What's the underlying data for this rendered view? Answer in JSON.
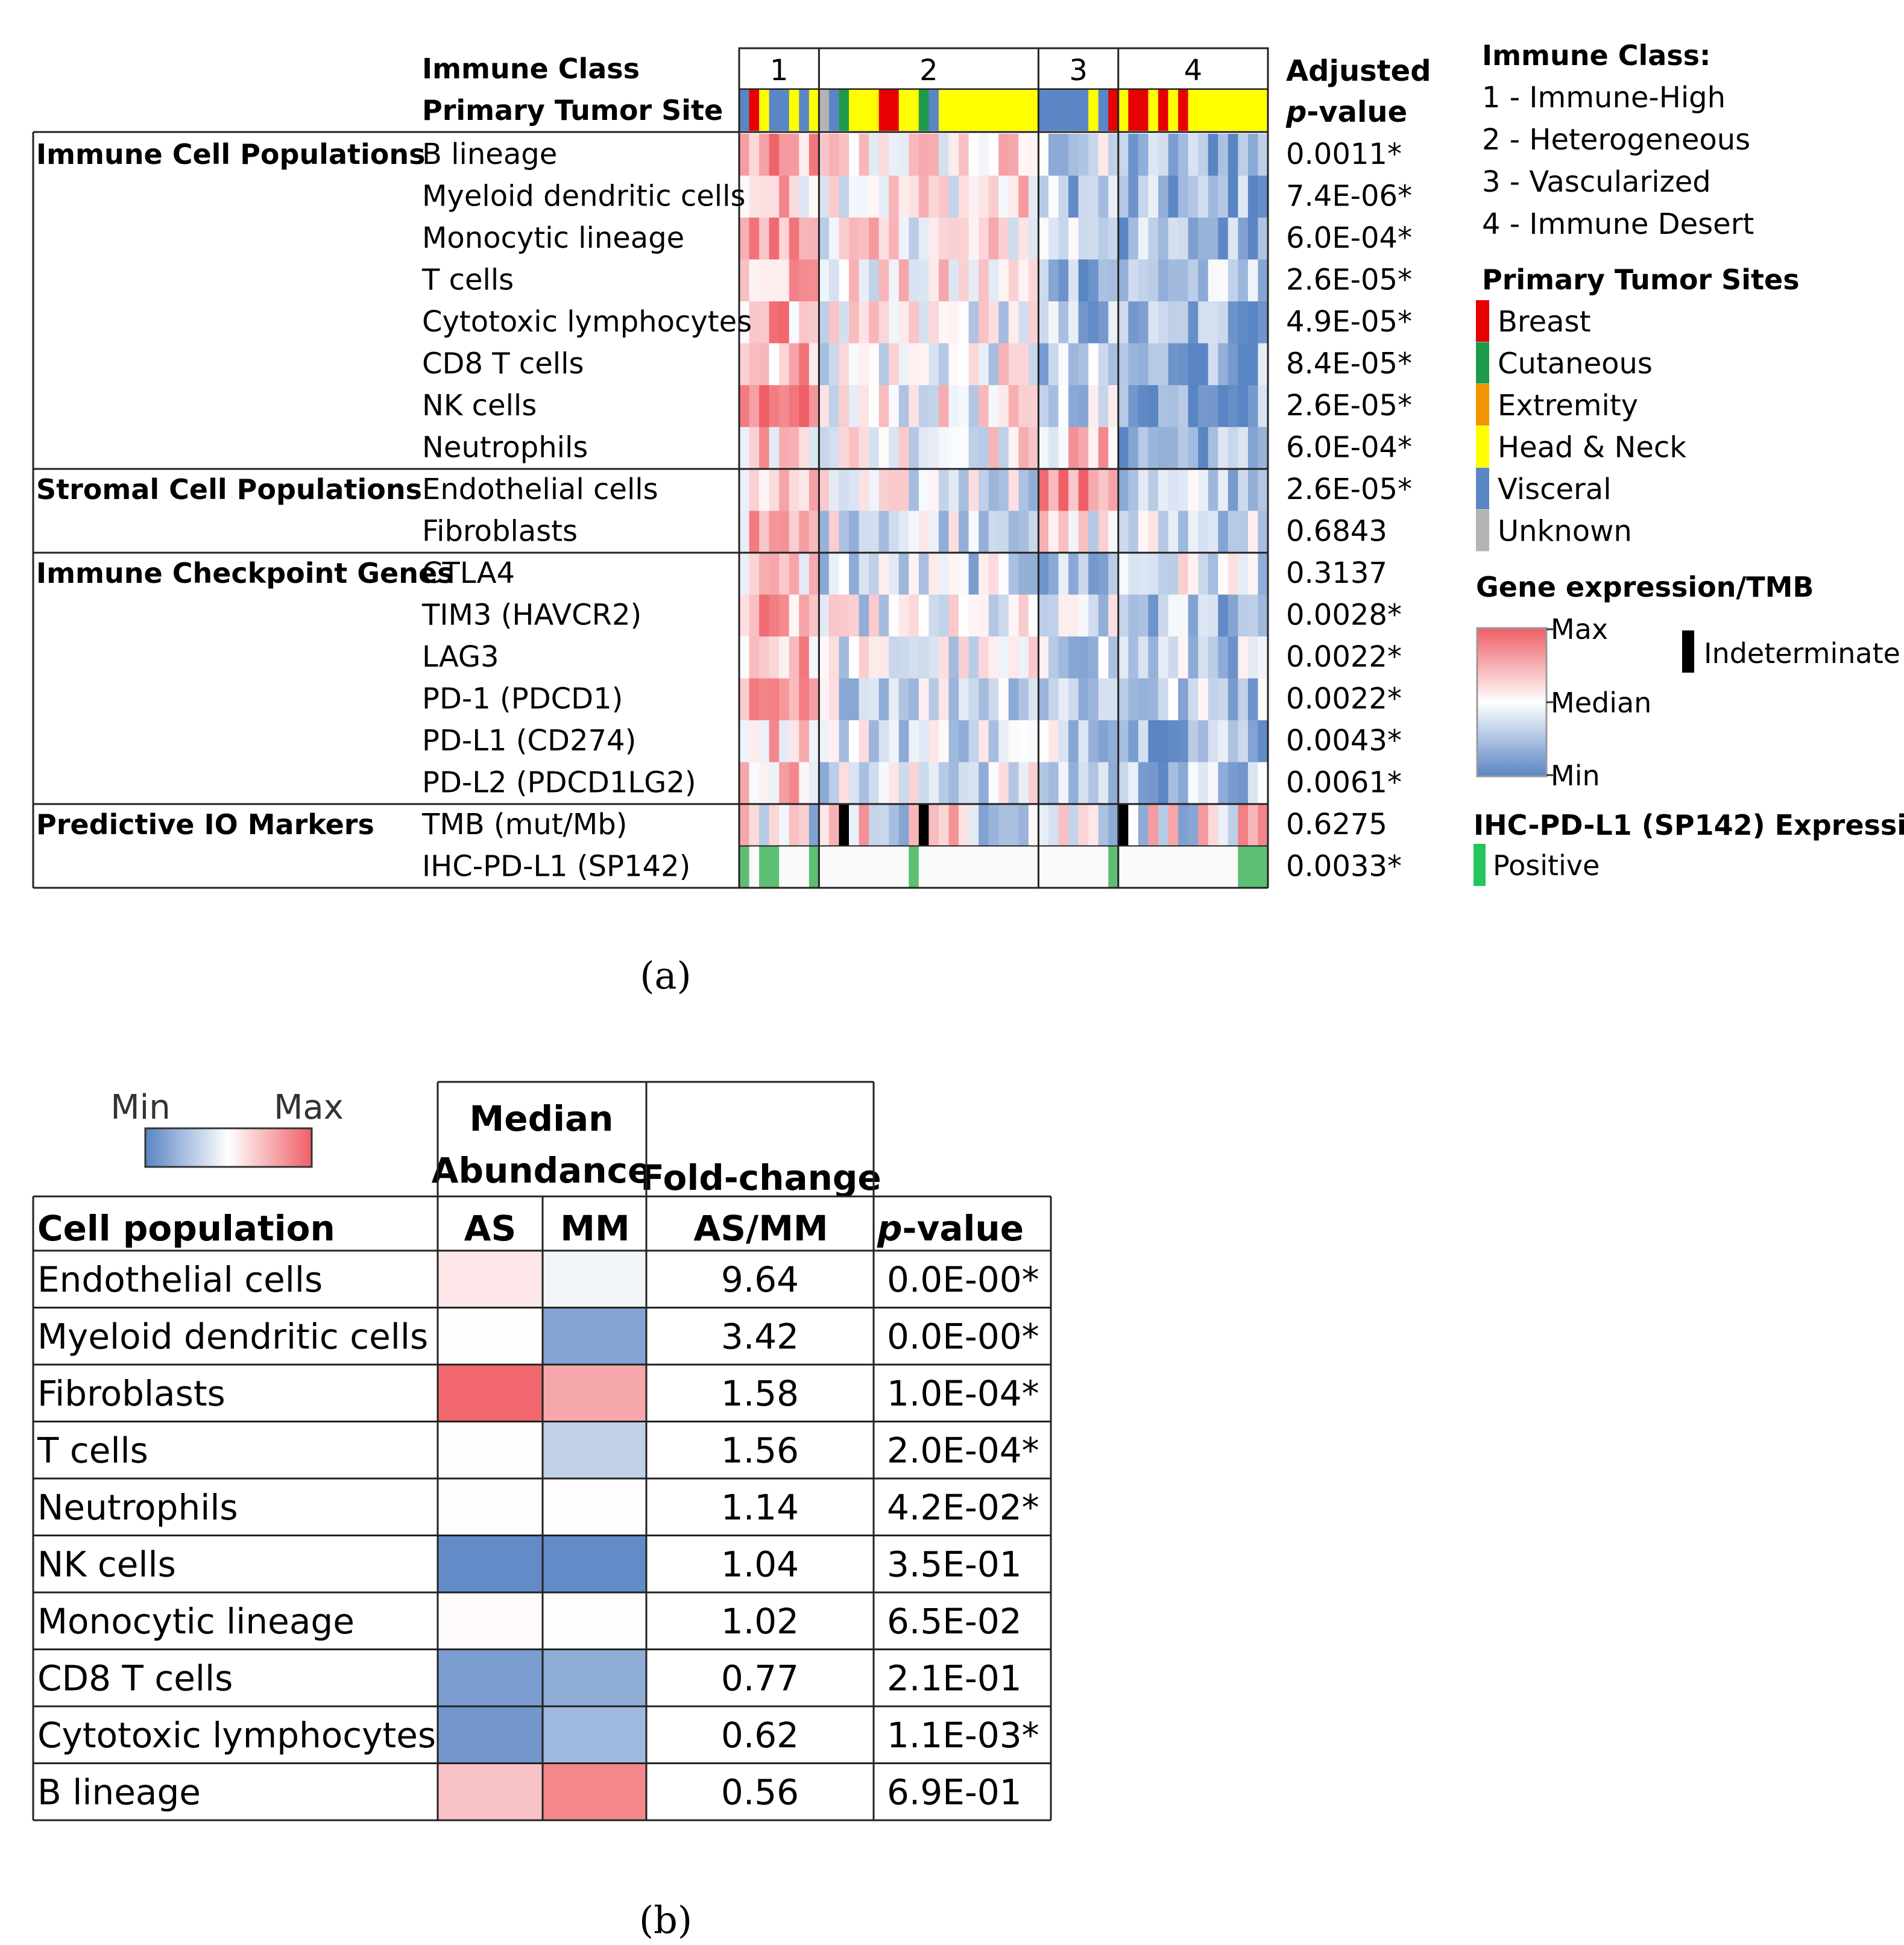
{
  "panel_a": {
    "caption": "(a)",
    "header_labels": {
      "immune_class": "Immune Class",
      "primary_tumor_site": "Primary Tumor Site"
    },
    "pvalue_header": {
      "line1": "Adjusted",
      "line2_italic": "p",
      "line2_rest": "-value"
    },
    "class_numbers": [
      "1",
      "2",
      "3",
      "4"
    ],
    "class_sample_counts": [
      8,
      22,
      8,
      15
    ],
    "tumor_site_sequence": [
      "visceral",
      "breast",
      "head_neck",
      "visceral",
      "visceral",
      "head_neck",
      "visceral",
      "head_neck",
      "unknown",
      "visceral",
      "cutaneous",
      "head_neck",
      "head_neck",
      "head_neck",
      "breast",
      "breast",
      "head_neck",
      "head_neck",
      "cutaneous",
      "visceral",
      "head_neck",
      "head_neck",
      "head_neck",
      "head_neck",
      "head_neck",
      "head_neck",
      "head_neck",
      "head_neck",
      "head_neck",
      "head_neck",
      "visceral",
      "visceral",
      "visceral",
      "visceral",
      "visceral",
      "head_neck",
      "visceral",
      "breast",
      "head_neck",
      "breast",
      "breast",
      "head_neck",
      "breast",
      "head_neck",
      "breast",
      "head_neck",
      "head_neck",
      "head_neck",
      "head_neck",
      "head_neck",
      "head_neck",
      "head_neck",
      "head_neck"
    ],
    "tumor_site_colors": {
      "breast": "#e60000",
      "cutaneous": "#1f9a4a",
      "extremity": "#f29400",
      "head_neck": "#ffff00",
      "visceral": "#5b86c5",
      "unknown": "#b4b4b4"
    },
    "groups": [
      {
        "label": "Immune Cell Populations",
        "rows": [
          {
            "name": "B lineage",
            "pvalue": "0.0011*"
          },
          {
            "name": "Myeloid dendritic cells",
            "pvalue": "7.4E-06*"
          },
          {
            "name": "Monocytic lineage",
            "pvalue": "6.0E-04*"
          },
          {
            "name": "T cells",
            "pvalue": "2.6E-05*"
          },
          {
            "name": "Cytotoxic lymphocytes",
            "pvalue": "4.9E-05*"
          },
          {
            "name": "CD8 T cells",
            "pvalue": "8.4E-05*"
          },
          {
            "name": "NK cells",
            "pvalue": "2.6E-05*"
          },
          {
            "name": "Neutrophils",
            "pvalue": "6.0E-04*"
          }
        ]
      },
      {
        "label": "Stromal Cell Populations",
        "rows": [
          {
            "name": "Endothelial cells",
            "pvalue": "2.6E-05*"
          },
          {
            "name": "Fibroblasts",
            "pvalue": "0.6843"
          }
        ]
      },
      {
        "label": "Immune Checkpoint Genes",
        "rows": [
          {
            "name": "CTLA4",
            "pvalue": "0.3137"
          },
          {
            "name": "TIM3 (HAVCR2)",
            "pvalue": "0.0028*"
          },
          {
            "name": "LAG3",
            "pvalue": "0.0022*"
          },
          {
            "name": "PD-1 (PDCD1)",
            "pvalue": "0.0022*"
          },
          {
            "name": "PD-L1 (CD274)",
            "pvalue": "0.0043*"
          },
          {
            "name": "PD-L2 (PDCD1LG2)",
            "pvalue": "0.0061*"
          }
        ]
      },
      {
        "label": "Predictive IO Markers",
        "rows": [
          {
            "name": "TMB (mut/Mb)",
            "pvalue": "0.6275"
          },
          {
            "name": "IHC-PD-L1 (SP142)",
            "pvalue": "0.0033*"
          }
        ]
      }
    ],
    "class_bias": [
      [
        0.45,
        0.15,
        -0.35,
        -0.6
      ],
      [
        0.3,
        0.15,
        -0.45,
        -0.65
      ],
      [
        0.55,
        0.1,
        -0.15,
        -0.6
      ],
      [
        0.5,
        0.05,
        -0.5,
        -0.5
      ],
      [
        0.45,
        -0.05,
        -0.55,
        -0.6
      ],
      [
        0.45,
        -0.05,
        -0.5,
        -0.65
      ],
      [
        0.5,
        0.0,
        -0.25,
        -0.6
      ],
      [
        0.3,
        0.05,
        0.25,
        -0.6
      ],
      [
        0.25,
        -0.15,
        0.65,
        -0.4
      ],
      [
        0.35,
        -0.15,
        0.0,
        -0.25
      ],
      [
        0.2,
        -0.3,
        -0.55,
        -0.15
      ],
      [
        0.4,
        -0.15,
        -0.3,
        -0.5
      ],
      [
        0.4,
        -0.15,
        -0.3,
        -0.4
      ],
      [
        0.4,
        -0.2,
        -0.35,
        -0.4
      ],
      [
        0.35,
        -0.2,
        -0.25,
        -0.5
      ],
      [
        0.3,
        -0.2,
        -0.35,
        -0.5
      ]
    ],
    "tmb_indeterminate_columns": [
      10,
      18,
      38
    ],
    "ihc_positive_columns": [
      0,
      2,
      3,
      7,
      17,
      37,
      50,
      51,
      52
    ],
    "legend": {
      "immune_class_title": "Immune Class:",
      "immune_class_items": [
        "1 - Immune-High",
        "2 - Heterogeneous",
        "3 - Vascularized",
        "4 - Immune Desert"
      ],
      "sites_title": "Primary Tumor Sites",
      "site_items": [
        {
          "label": "Breast",
          "color": "#e60000"
        },
        {
          "label": "Cutaneous",
          "color": "#1f9a4a"
        },
        {
          "label": "Extremity",
          "color": "#f29400"
        },
        {
          "label": "Head & Neck",
          "color": "#ffff00"
        },
        {
          "label": "Visceral",
          "color": "#5b86c5"
        },
        {
          "label": "Unknown",
          "color": "#b4b4b4"
        }
      ],
      "gene_title": "Gene expression/TMB",
      "gene_max": "Max",
      "gene_median": "Median",
      "gene_min": "Min",
      "indeterminate_label": "Indeterminate",
      "ihc_title": "IHC-PD-L1 (SP142) Expression",
      "ihc_positive_label": "Positive"
    },
    "colors": {
      "min": "#5a85c4",
      "mid": "#ffffff",
      "max": "#ef5f66",
      "ihc_positive": "#5cbf74",
      "indeterminate": "#000000"
    }
  },
  "panel_b": {
    "caption": "(b)",
    "scale_min": "Min",
    "scale_max": "Max",
    "header_median_line1": "Median",
    "header_median_line2": "Abundance",
    "header_fold_line1": "Fold-change",
    "header_fold_line2": "AS/MM",
    "header_cell_population": "Cell population",
    "header_as": "AS",
    "header_mm": "MM",
    "header_p_italic": "p",
    "header_p_rest": "-value",
    "rows": [
      {
        "name": "Endothelial cells",
        "as": 0.15,
        "mm": -0.08,
        "fold": "9.64",
        "p": "0.0E-00*"
      },
      {
        "name": "Myeloid dendritic cells",
        "as": 0.01,
        "mm": -0.75,
        "fold": "3.42",
        "p": "0.0E-00*"
      },
      {
        "name": "Fibroblasts",
        "as": 0.95,
        "mm": 0.55,
        "fold": "1.58",
        "p": "1.0E-04*"
      },
      {
        "name": "T cells",
        "as": 0.01,
        "mm": -0.38,
        "fold": "1.56",
        "p": "2.0E-04*"
      },
      {
        "name": "Neutrophils",
        "as": 0.02,
        "mm": 0.01,
        "fold": "1.14",
        "p": "4.2E-02*"
      },
      {
        "name": "NK cells",
        "as": -0.95,
        "mm": -0.95,
        "fold": "1.04",
        "p": "3.5E-01"
      },
      {
        "name": "Monocytic lineage",
        "as": 0.03,
        "mm": 0.02,
        "fold": "1.02",
        "p": "6.5E-02"
      },
      {
        "name": "CD8 T cells",
        "as": -0.8,
        "mm": -0.68,
        "fold": "0.77",
        "p": "2.1E-01"
      },
      {
        "name": "Cytotoxic lymphocytes",
        "as": -0.85,
        "mm": -0.58,
        "fold": "0.62",
        "p": "1.1E-03*"
      },
      {
        "name": "B lineage",
        "as": 0.38,
        "mm": 0.75,
        "fold": "0.56",
        "p": "6.9E-01"
      }
    ]
  },
  "chart_data": [
    {
      "type": "heatmap",
      "title": "(a)",
      "x": "53 samples grouped by Immune Class (1: 8, 2: 22, 3: 8, 4: 15)",
      "ylabels": [
        "B lineage",
        "Myeloid dendritic cells",
        "Monocytic lineage",
        "T cells",
        "Cytotoxic lymphocytes",
        "CD8 T cells",
        "NK cells",
        "Neutrophils",
        "Endothelial cells",
        "Fibroblasts",
        "CTLA4",
        "TIM3 (HAVCR2)",
        "LAG3",
        "PD-1 (PDCD1)",
        "PD-L1 (CD274)",
        "PD-L2 (PDCD1LG2)",
        "TMB (mut/Mb)",
        "IHC-PD-L1 (SP142)"
      ],
      "adjusted_pvalues": [
        "0.0011*",
        "7.4E-06*",
        "6.0E-04*",
        "2.6E-05*",
        "4.9E-05*",
        "8.4E-05*",
        "2.6E-05*",
        "6.0E-04*",
        "2.6E-05*",
        "0.6843",
        "0.3137",
        "0.0028*",
        "0.0022*",
        "0.0022*",
        "0.0043*",
        "0.0061*",
        "0.6275",
        "0.0033*"
      ],
      "color_scale": [
        "Min",
        "Median",
        "Max"
      ]
    },
    {
      "type": "table",
      "title": "(b)",
      "columns": [
        "Cell population",
        "AS",
        "MM",
        "Fold-change AS/MM",
        "p-value"
      ],
      "categories": [
        "Endothelial cells",
        "Myeloid dendritic cells",
        "Fibroblasts",
        "T cells",
        "Neutrophils",
        "NK cells",
        "Monocytic lineage",
        "CD8 T cells",
        "Cytotoxic lymphocytes",
        "B lineage"
      ],
      "fold_change": [
        9.64,
        3.42,
        1.58,
        1.56,
        1.14,
        1.04,
        1.02,
        0.77,
        0.62,
        0.56
      ],
      "p_value": [
        "0.0E-00*",
        "0.0E-00*",
        "1.0E-04*",
        "2.0E-04*",
        "4.2E-02*",
        "3.5E-01",
        "6.5E-02",
        "2.1E-01",
        "1.1E-03*",
        "6.9E-01"
      ]
    }
  ]
}
